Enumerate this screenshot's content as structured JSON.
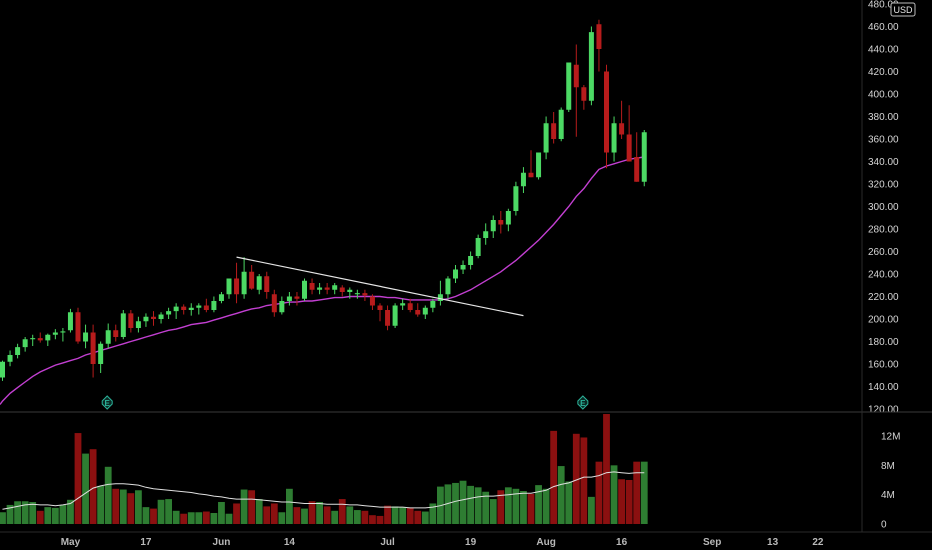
{
  "currency": "USD",
  "colors": {
    "up": "#4cd964",
    "down": "#b71c1c",
    "vol_up": "#2e7d32",
    "vol_down": "#8b1010",
    "ma": "#c23fd1",
    "vol_ma": "#e0e0e0",
    "trendline": "#e6e6e6",
    "grid": "#262626",
    "earnings": "#2bb39a"
  },
  "earnings_label": "E",
  "chart_data": [
    {
      "type": "candlestick",
      "title": "",
      "yaxis_ticks": [
        "120.00",
        "140.00",
        "160.00",
        "180.00",
        "200.00",
        "220.00",
        "240.00",
        "260.00",
        "280.00",
        "300.00",
        "320.00",
        "340.00",
        "360.00",
        "380.00",
        "400.00",
        "420.00",
        "440.00",
        "460.00",
        "480.00"
      ],
      "ylim": [
        120,
        480
      ],
      "xaxis_ticks": [
        {
          "label": "May",
          "i": 9
        },
        {
          "label": "17",
          "i": 19
        },
        {
          "label": "Jun",
          "i": 29
        },
        {
          "label": "14",
          "i": 38
        },
        {
          "label": "Jul",
          "i": 51
        },
        {
          "label": "19",
          "i": 62
        },
        {
          "label": "Aug",
          "i": 72
        },
        {
          "label": "16",
          "i": 82
        },
        {
          "label": "Sep",
          "i": 94
        },
        {
          "label": "13",
          "i": 102
        },
        {
          "label": "22",
          "i": 108
        }
      ],
      "earnings_at": [
        14,
        77
      ],
      "ohlc": [
        [
          148,
          163,
          145,
          162
        ],
        [
          162,
          172,
          158,
          168
        ],
        [
          168,
          178,
          165,
          175
        ],
        [
          175,
          184,
          171,
          182
        ],
        [
          182,
          186,
          176,
          183
        ],
        [
          183,
          188,
          179,
          181
        ],
        [
          181,
          187,
          176,
          186
        ],
        [
          186,
          191,
          182,
          188
        ],
        [
          188,
          192,
          180,
          189
        ],
        [
          190,
          209,
          188,
          206
        ],
        [
          206,
          210,
          178,
          180
        ],
        [
          180,
          195,
          174,
          188
        ],
        [
          188,
          195,
          148,
          160
        ],
        [
          160,
          180,
          152,
          178
        ],
        [
          178,
          196,
          174,
          190
        ],
        [
          190,
          195,
          180,
          184
        ],
        [
          184,
          208,
          182,
          205
        ],
        [
          205,
          208,
          188,
          192
        ],
        [
          192,
          202,
          188,
          198
        ],
        [
          198,
          205,
          193,
          202
        ],
        [
          202,
          207,
          194,
          200
        ],
        [
          200,
          206,
          196,
          204
        ],
        [
          204,
          210,
          200,
          207
        ],
        [
          207,
          214,
          200,
          211
        ],
        [
          211,
          213,
          204,
          208
        ],
        [
          208,
          214,
          203,
          210
        ],
        [
          210,
          214,
          204,
          212
        ],
        [
          212,
          218,
          206,
          208
        ],
        [
          208,
          220,
          206,
          216
        ],
        [
          216,
          224,
          214,
          222
        ],
        [
          222,
          236,
          218,
          236
        ],
        [
          236,
          250,
          214,
          222
        ],
        [
          222,
          255,
          218,
          242
        ],
        [
          242,
          248,
          226,
          227
        ],
        [
          226,
          240,
          222,
          238
        ],
        [
          238,
          242,
          218,
          224
        ],
        [
          222,
          226,
          202,
          206
        ],
        [
          206,
          220,
          204,
          216
        ],
        [
          216,
          224,
          212,
          220
        ],
        [
          220,
          224,
          212,
          218
        ],
        [
          218,
          236,
          216,
          234
        ],
        [
          232,
          236,
          222,
          226
        ],
        [
          226,
          232,
          222,
          228
        ],
        [
          228,
          232,
          222,
          226
        ],
        [
          226,
          232,
          222,
          230
        ],
        [
          228,
          230,
          220,
          224
        ],
        [
          224,
          228,
          218,
          226
        ],
        [
          222,
          226,
          218,
          223
        ],
        [
          223,
          226,
          216,
          221
        ],
        [
          220,
          222,
          208,
          212
        ],
        [
          212,
          214,
          198,
          208
        ],
        [
          208,
          212,
          190,
          194
        ],
        [
          194,
          214,
          192,
          212
        ],
        [
          212,
          218,
          208,
          214
        ],
        [
          214,
          218,
          206,
          208
        ],
        [
          208,
          214,
          202,
          204
        ],
        [
          204,
          212,
          200,
          210
        ],
        [
          210,
          218,
          206,
          216
        ],
        [
          216,
          234,
          212,
          222
        ],
        [
          222,
          238,
          218,
          236
        ],
        [
          236,
          248,
          232,
          244
        ],
        [
          244,
          252,
          240,
          248
        ],
        [
          248,
          260,
          244,
          256
        ],
        [
          256,
          275,
          254,
          272
        ],
        [
          272,
          285,
          266,
          278
        ],
        [
          278,
          292,
          272,
          288
        ],
        [
          288,
          296,
          276,
          284
        ],
        [
          284,
          298,
          278,
          296
        ],
        [
          296,
          322,
          292,
          318
        ],
        [
          318,
          335,
          312,
          330
        ],
        [
          330,
          350,
          326,
          326
        ],
        [
          326,
          348,
          324,
          348
        ],
        [
          348,
          380,
          342,
          374
        ],
        [
          374,
          384,
          356,
          360
        ],
        [
          360,
          388,
          358,
          386
        ],
        [
          386,
          428,
          384,
          428
        ],
        [
          426,
          444,
          362,
          406
        ],
        [
          406,
          408,
          386,
          394
        ],
        [
          394,
          460,
          390,
          455
        ],
        [
          462,
          466,
          420,
          440
        ],
        [
          420,
          426,
          334,
          348
        ],
        [
          348,
          380,
          340,
          374
        ],
        [
          374,
          394,
          360,
          364
        ],
        [
          364,
          390,
          340,
          340
        ],
        [
          344,
          366,
          322,
          322
        ],
        [
          322,
          368,
          318,
          366
        ]
      ],
      "volume": [
        1.6,
        2.6,
        3.1,
        3.1,
        3.0,
        1.8,
        2.3,
        2.2,
        2.6,
        3.3,
        12.4,
        9.6,
        10.2,
        5.2,
        7.8,
        4.8,
        4.7,
        4.2,
        4.6,
        2.3,
        2.1,
        3.3,
        3.4,
        1.8,
        1.4,
        1.6,
        1.6,
        1.7,
        1.5,
        3.0,
        1.4,
        2.8,
        4.7,
        4.6,
        3.4,
        2.4,
        2.8,
        1.6,
        4.8,
        2.3,
        2.1,
        3.1,
        3.0,
        2.4,
        1.8,
        3.4,
        2.4,
        1.9,
        1.8,
        1.2,
        1.1,
        2.5,
        2.4,
        2.3,
        2.2,
        1.8,
        1.7,
        2.8,
        5.1,
        5.4,
        5.6,
        5.9,
        5.2,
        5.0,
        4.4,
        3.4,
        4.6,
        5.0,
        4.8,
        4.5,
        4.1,
        5.3,
        4.8,
        12.7,
        7.9,
        5.8,
        12.3,
        11.8,
        3.7,
        8.5,
        15.0,
        8.0,
        6.1,
        6.0,
        8.5,
        8.5
      ],
      "ma_close": [
        127,
        134,
        139,
        144,
        149,
        153,
        156,
        159,
        161,
        163,
        165,
        168,
        170,
        172,
        174,
        176,
        178,
        180,
        182,
        184,
        186,
        188,
        190,
        191,
        193,
        195,
        196,
        197,
        199,
        201,
        203,
        205,
        207,
        209,
        210,
        212,
        213,
        214,
        215,
        215,
        216,
        216,
        217,
        218,
        219,
        219,
        220,
        220,
        220,
        220,
        220,
        219,
        219,
        218,
        217,
        217,
        217,
        217,
        217,
        218,
        220,
        223,
        226,
        230,
        234,
        238,
        242,
        247,
        252,
        258,
        264,
        270,
        277,
        284,
        292,
        300,
        309,
        316,
        325,
        333,
        336,
        338,
        340,
        342,
        343,
        344
      ],
      "vol_ma": [
        2.0,
        2.2,
        2.4,
        2.6,
        2.7,
        2.6,
        2.6,
        2.5,
        2.6,
        2.8,
        3.5,
        4.2,
        4.9,
        5.2,
        5.4,
        5.5,
        5.5,
        5.4,
        5.3,
        5.0,
        4.8,
        4.7,
        4.6,
        4.5,
        4.4,
        4.3,
        4.1,
        4.0,
        3.8,
        3.7,
        3.5,
        3.4,
        3.4,
        3.4,
        3.3,
        3.2,
        3.1,
        3.0,
        3.0,
        2.9,
        2.8,
        2.8,
        2.8,
        2.7,
        2.7,
        2.7,
        2.6,
        2.6,
        2.5,
        2.4,
        2.3,
        2.3,
        2.3,
        2.3,
        2.2,
        2.2,
        2.2,
        2.3,
        2.5,
        2.8,
        3.1,
        3.3,
        3.5,
        3.7,
        3.8,
        3.8,
        3.9,
        4.0,
        4.1,
        4.2,
        4.2,
        4.4,
        4.6,
        5.1,
        5.4,
        5.6,
        6.0,
        6.4,
        6.4,
        6.6,
        7.0,
        7.1,
        7.0,
        6.9,
        7.0,
        7.0
      ],
      "trendline": {
        "from": {
          "i": 31,
          "price": 255
        },
        "to": {
          "i": 69,
          "price": 203
        }
      }
    },
    {
      "type": "bar",
      "title": "",
      "yaxis_ticks": [
        "0",
        "4M",
        "8M",
        "12M"
      ],
      "ylim": [
        0,
        16
      ]
    }
  ]
}
